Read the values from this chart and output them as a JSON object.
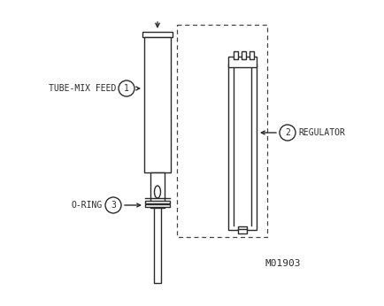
{
  "bg_color": "#ffffff",
  "line_color": "#2a2a2a",
  "dashed_color": "#444444",
  "title_text": "M01903",
  "label1": "TUBE-MIX FEED",
  "label2": "REGULATOR",
  "label3": "O-RING",
  "num1": "1",
  "num2": "2",
  "num3": "3",
  "figsize": [
    4.35,
    3.46
  ],
  "dpi": 100
}
